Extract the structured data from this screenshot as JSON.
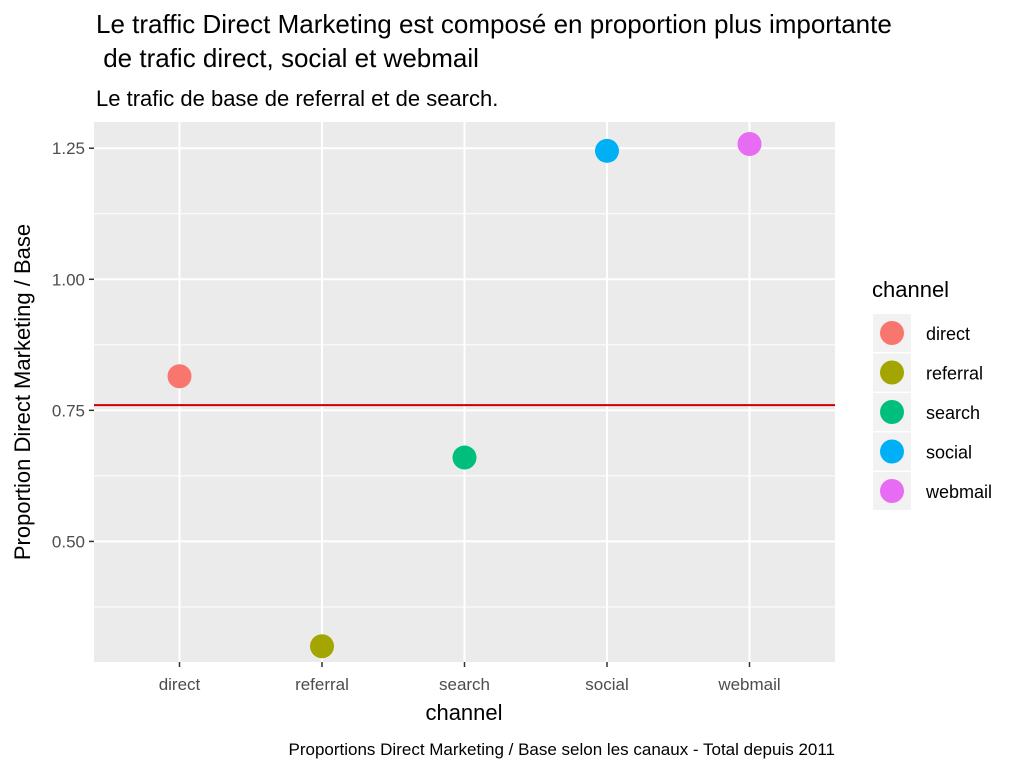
{
  "chart_data": {
    "type": "scatter",
    "title": "Le traffic Direct Marketing est composé en proportion plus importante\n de trafic direct, social et webmail",
    "subtitle": "Le trafic de base de referral et de search.",
    "caption": "Proportions Direct Marketing / Base selon les canaux - Total depuis 2011",
    "xlabel": "channel",
    "ylabel": "Proportion Direct Marketing / Base",
    "categories": [
      "direct",
      "referral",
      "search",
      "social",
      "webmail"
    ],
    "values": [
      0.815,
      0.3,
      0.66,
      1.245,
      1.258
    ],
    "colors": [
      "#F8766D",
      "#A3A500",
      "#00BF7D",
      "#00B0F6",
      "#E76BF3"
    ],
    "ylim": [
      0.27,
      1.3
    ],
    "yticks": [
      0.5,
      0.75,
      1.0,
      1.25
    ],
    "ytick_labels": [
      "0.50",
      "0.75",
      "1.00",
      "1.25"
    ],
    "reference_line": {
      "y": 0.76,
      "color": "#cc0000"
    },
    "grid": true,
    "panel_background": "#EBEBEB",
    "legend": {
      "title": "channel",
      "position": "right",
      "entries": [
        "direct",
        "referral",
        "search",
        "social",
        "webmail"
      ]
    }
  }
}
